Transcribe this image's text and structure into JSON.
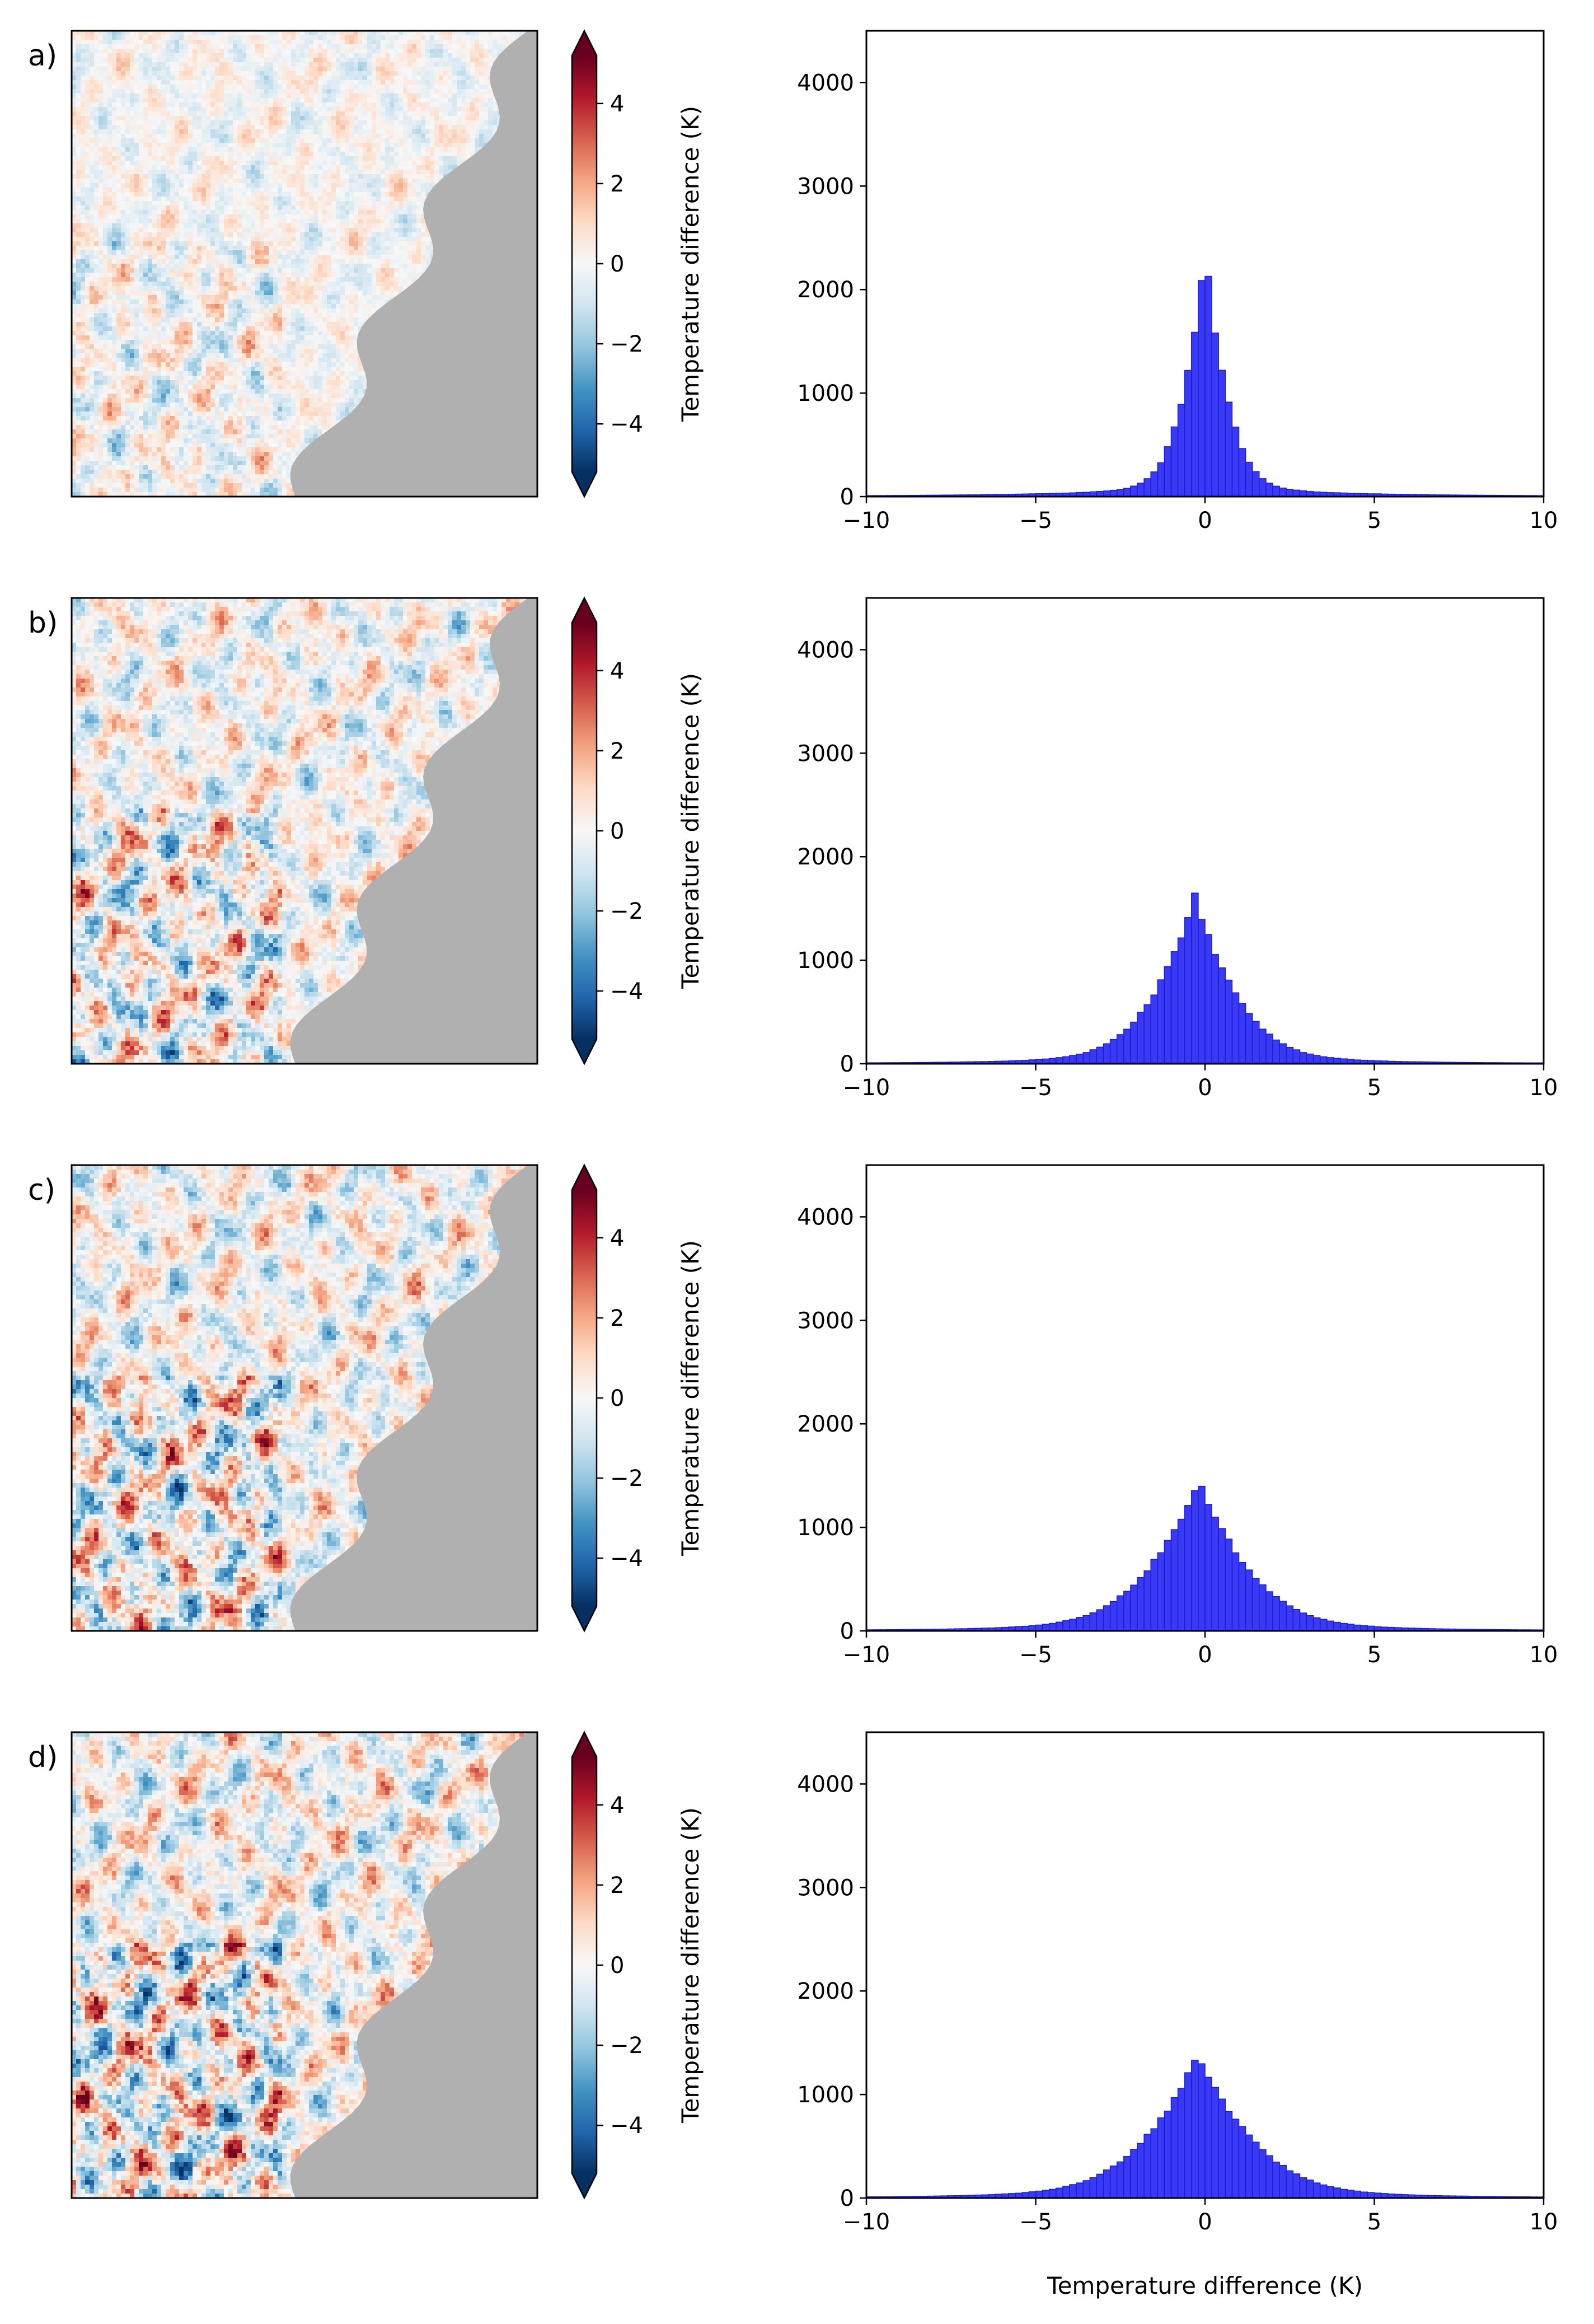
{
  "figure": {
    "colors": {
      "land": "#b0b0b0",
      "hist_fill": "#3a3af5",
      "hist_edge": "#1a1ad8",
      "axis": "#000000"
    },
    "colormap": {
      "name": "RdBu_r",
      "stops": [
        "#053061",
        "#2166ac",
        "#4393c3",
        "#92c5de",
        "#d1e5f0",
        "#f7f7f7",
        "#fddbc7",
        "#f4a582",
        "#d6604d",
        "#b2182b",
        "#67001f"
      ]
    }
  },
  "panels": [
    {
      "label": "a)",
      "map_intensity": 0.55,
      "colorbar": {
        "label": "Temperature difference (K)",
        "ticks": [
          "4",
          "2",
          "0",
          "−2",
          "−4"
        ],
        "tick_values": [
          4,
          2,
          0,
          -2,
          -4
        ],
        "range": [
          -5.2,
          5.2
        ]
      },
      "hist_xlabel": ""
    },
    {
      "label": "b)",
      "map_intensity": 0.9,
      "colorbar": {
        "label": "Temperature difference (K)",
        "ticks": [
          "4",
          "2",
          "0",
          "−2",
          "−4"
        ],
        "tick_values": [
          4,
          2,
          0,
          -2,
          -4
        ],
        "range": [
          -5.2,
          5.2
        ]
      },
      "hist_xlabel": ""
    },
    {
      "label": "c)",
      "map_intensity": 1.0,
      "colorbar": {
        "label": "Temperature difference (K)",
        "ticks": [
          "4",
          "2",
          "0",
          "−2",
          "−4"
        ],
        "tick_values": [
          4,
          2,
          0,
          -2,
          -4
        ],
        "range": [
          -5.2,
          5.2
        ]
      },
      "hist_xlabel": ""
    },
    {
      "label": "d)",
      "map_intensity": 1.1,
      "colorbar": {
        "label": "Temperature difference (K)",
        "ticks": [
          "4",
          "2",
          "0",
          "−2",
          "−4"
        ],
        "tick_values": [
          4,
          2,
          0,
          -2,
          -4
        ],
        "range": [
          -5.2,
          5.2
        ]
      },
      "hist_xlabel": "Temperature difference (K)"
    }
  ],
  "chart_data": [
    {
      "type": "bar",
      "panel": "a)",
      "title": "",
      "xlabel": "",
      "ylabel": "",
      "xlim": [
        -10,
        10
      ],
      "ylim": [
        0,
        4500
      ],
      "xticks": [
        -10,
        -5,
        0,
        5,
        10
      ],
      "xtick_labels": [
        "−10",
        "−5",
        "0",
        "5",
        "10"
      ],
      "yticks": [
        0,
        1000,
        2000,
        3000,
        4000
      ],
      "ytick_labels": [
        "0",
        "1000",
        "2000",
        "3000",
        "4000"
      ],
      "bin_width": 0.2,
      "peak": 2300,
      "center": 0.0,
      "sigma": 0.7,
      "tail_fraction": 0.03
    },
    {
      "type": "bar",
      "panel": "b)",
      "title": "",
      "xlabel": "",
      "ylabel": "",
      "xlim": [
        -10,
        10
      ],
      "ylim": [
        0,
        4500
      ],
      "xticks": [
        -10,
        -5,
        0,
        5,
        10
      ],
      "xtick_labels": [
        "−10",
        "−5",
        "0",
        "5",
        "10"
      ],
      "yticks": [
        0,
        1000,
        2000,
        3000,
        4000
      ],
      "ytick_labels": [
        "0",
        "1000",
        "2000",
        "3000",
        "4000"
      ],
      "bin_width": 0.2,
      "peak": 1560,
      "center": -0.3,
      "sigma": 1.3,
      "tail_fraction": 0.04
    },
    {
      "type": "bar",
      "panel": "c)",
      "title": "",
      "xlabel": "",
      "ylabel": "",
      "xlim": [
        -10,
        10
      ],
      "ylim": [
        0,
        4500
      ],
      "xticks": [
        -10,
        -5,
        0,
        5,
        10
      ],
      "xtick_labels": [
        "−10",
        "−5",
        "0",
        "5",
        "10"
      ],
      "yticks": [
        0,
        1000,
        2000,
        3000,
        4000
      ],
      "ytick_labels": [
        "0",
        "1000",
        "2000",
        "3000",
        "4000"
      ],
      "bin_width": 0.2,
      "peak": 1400,
      "center": -0.2,
      "sigma": 1.55,
      "tail_fraction": 0.05
    },
    {
      "type": "bar",
      "panel": "d)",
      "title": "",
      "xlabel": "Temperature difference (K)",
      "ylabel": "",
      "xlim": [
        -10,
        10
      ],
      "ylim": [
        0,
        4500
      ],
      "xticks": [
        -10,
        -5,
        0,
        5,
        10
      ],
      "xtick_labels": [
        "−10",
        "−5",
        "0",
        "5",
        "10"
      ],
      "yticks": [
        0,
        1000,
        2000,
        3000,
        4000
      ],
      "ytick_labels": [
        "0",
        "1000",
        "2000",
        "3000",
        "4000"
      ],
      "bin_width": 0.2,
      "peak": 1310,
      "center": -0.2,
      "sigma": 1.65,
      "tail_fraction": 0.06
    }
  ]
}
